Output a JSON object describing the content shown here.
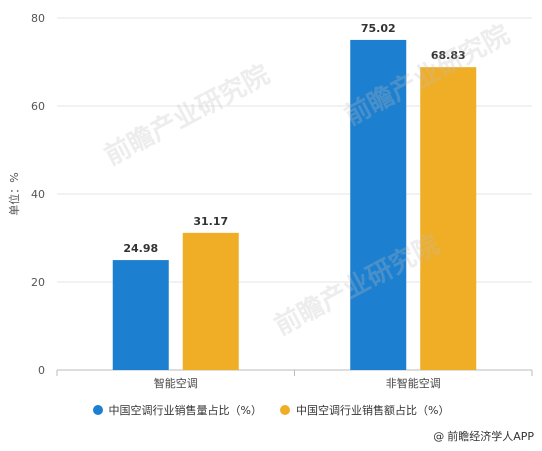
{
  "chart_data": {
    "type": "bar",
    "categories": [
      "智能空调",
      "非智能空调"
    ],
    "series": [
      {
        "name": "中国空调行业销售量占比（%）",
        "values": [
          24.98,
          75.02
        ],
        "color": "#1c7fcf"
      },
      {
        "name": "中国空调行业销售额占比（%）",
        "values": [
          31.17,
          68.83
        ],
        "color": "#f0ae26"
      }
    ],
    "ylabel": "单位：%",
    "ylim": [
      0,
      80
    ],
    "yticks": [
      0,
      20,
      40,
      60,
      80
    ],
    "grid": true,
    "legend_position": "bottom"
  },
  "watermark": "前瞻产业研究院",
  "source": "前瞻经济学人APP",
  "source_icon": "at-sign-icon"
}
